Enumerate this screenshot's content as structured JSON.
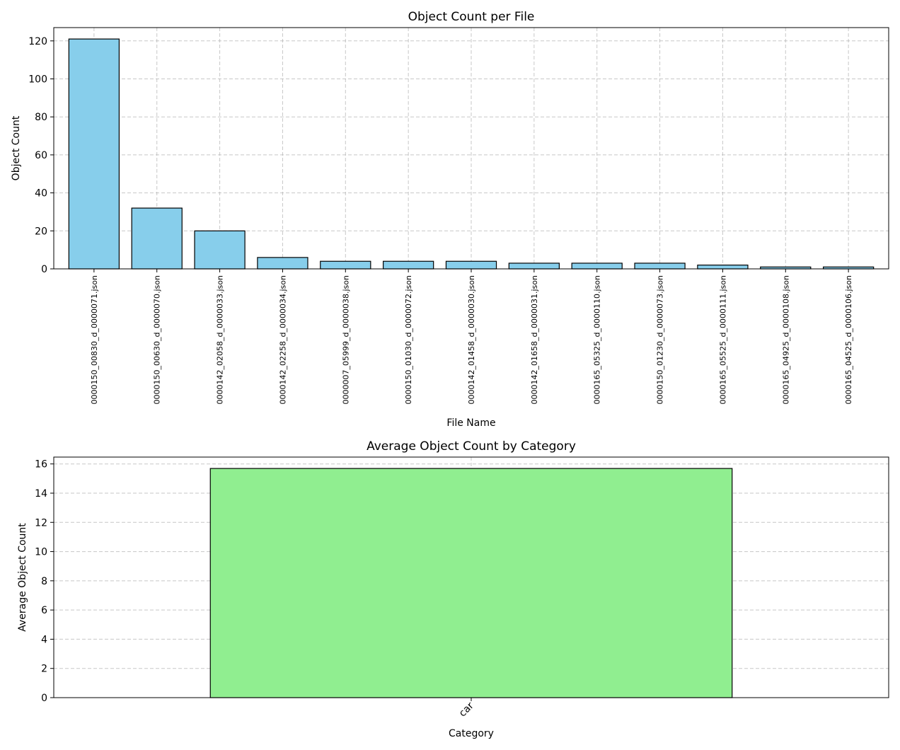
{
  "chart_data": [
    {
      "type": "bar",
      "title": "Object Count per File",
      "xlabel": "File Name",
      "ylabel": "Object Count",
      "categories": [
        "0000150_00830_d_0000071.json",
        "0000150_00630_d_0000070.json",
        "0000142_02058_d_0000033.json",
        "0000142_02258_d_0000034.json",
        "0000007_05999_d_0000038.json",
        "0000150_01030_d_0000072.json",
        "0000142_01458_d_0000030.json",
        "0000142_01658_d_0000031.json",
        "0000165_05325_d_0000110.json",
        "0000150_01230_d_0000073.json",
        "0000165_05525_d_0000111.json",
        "0000165_04925_d_0000108.json",
        "0000165_04525_d_0000106.json"
      ],
      "values": [
        121,
        32,
        20,
        6,
        4,
        4,
        4,
        3,
        3,
        3,
        2,
        1,
        1
      ],
      "ylim": [
        0,
        127
      ],
      "yticks": [
        0,
        20,
        40,
        60,
        80,
        100,
        120
      ],
      "tick_label_rotation": 90,
      "grid": true,
      "bar_color": "#87ceeb",
      "edge_color": "#000000"
    },
    {
      "type": "bar",
      "title": "Average Object Count by Category",
      "xlabel": "Category",
      "ylabel": "Average Object Count",
      "categories": [
        "car"
      ],
      "values": [
        15.69
      ],
      "ylim": [
        0,
        16.47
      ],
      "yticks": [
        0,
        2,
        4,
        6,
        8,
        10,
        12,
        14,
        16
      ],
      "tick_label_rotation": 45,
      "grid": true,
      "bar_color": "#90ee90",
      "edge_color": "#000000"
    }
  ]
}
